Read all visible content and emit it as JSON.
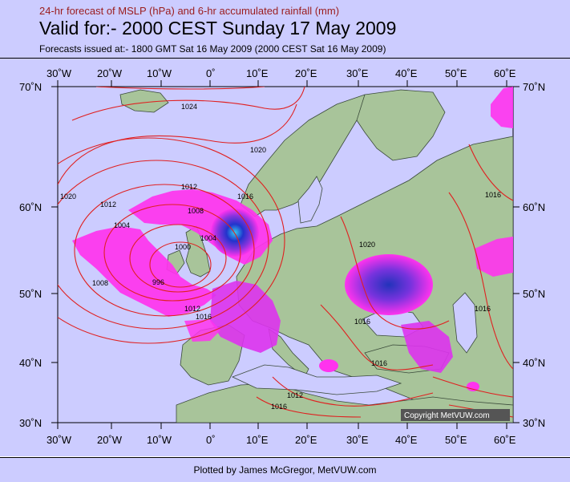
{
  "header": {
    "subtitle": "24-hr forecast of MSLP (hPa) and 6-hr accumulated rainfall (mm)",
    "title": "Valid for:- 2000 CEST Sunday 17 May 2009",
    "issued": "Forecasts issued at:- 1800 GMT Sat 16 May 2009 (2000 CEST Sat 16 May 2009)"
  },
  "map": {
    "lon_labels": [
      "30˚W",
      "20˚W",
      "10˚W",
      "0˚",
      "10˚E",
      "20˚E",
      "30˚E",
      "40˚E",
      "50˚E",
      "60˚E"
    ],
    "lat_labels": [
      "70˚N",
      "60˚N",
      "50˚N",
      "40˚N",
      "30˚N"
    ],
    "isobar_labels": [
      "1024",
      "1020",
      "1020",
      "1012",
      "1012",
      "1008",
      "1004",
      "1004",
      "1000",
      "996",
      "1008",
      "1012",
      "1016",
      "1016",
      "1016",
      "1016",
      "1020",
      "1016",
      "1016",
      "1012",
      "1016"
    ],
    "copyright": "Copyright MetVUW.com",
    "colors": {
      "isobar": "#e02020",
      "land": "#a8c49a",
      "sea": "#ccccff",
      "rain_light": "#ff33ee",
      "rain_heavy": "#2233cc"
    }
  },
  "footer": {
    "credit": "Plotted by James McGregor, MetVUW.com"
  }
}
